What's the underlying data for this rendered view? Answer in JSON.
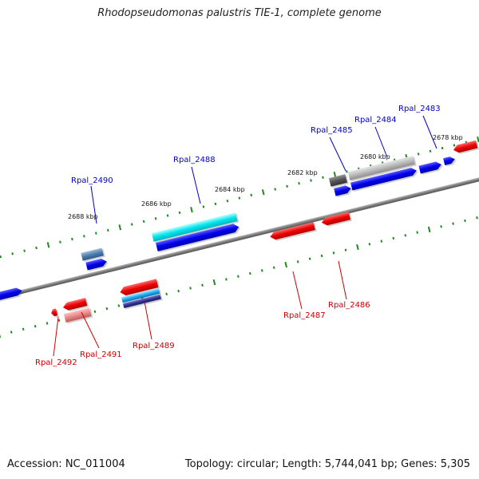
{
  "title": "Rhodopseudomonas palustris TIE-1, complete genome",
  "footer": {
    "accession": "Accession: NC_011004",
    "stats": "Topology: circular; Length: 5,744,041 bp; Genes: 5,305"
  },
  "ticks": [
    "2678 kbp",
    "2680 kbp",
    "2682 kbp",
    "2684 kbp",
    "2686 kbp",
    "2688 kbp"
  ],
  "genes": {
    "forward": [
      "Rpal_2483",
      "Rpal_2484",
      "Rpal_2485",
      "Rpal_2488",
      "Rpal_2490"
    ],
    "reverse": [
      "Rpal_2486",
      "Rpal_2487",
      "Rpal_2489",
      "Rpal_2491",
      "Rpal_2492"
    ]
  },
  "colors": {
    "forward_strand": "#0000ee",
    "reverse_strand": "#ee0000",
    "backbone": "#777777",
    "tick_marks": "#228822",
    "forward_label": "#0000cc",
    "reverse_label": "#cc0000",
    "cyan_gene": "#00e5ee",
    "gray_gene": "#b0b0b0",
    "steel_gene": "#4f7fb0",
    "pink_gene": "#e88a8a"
  }
}
